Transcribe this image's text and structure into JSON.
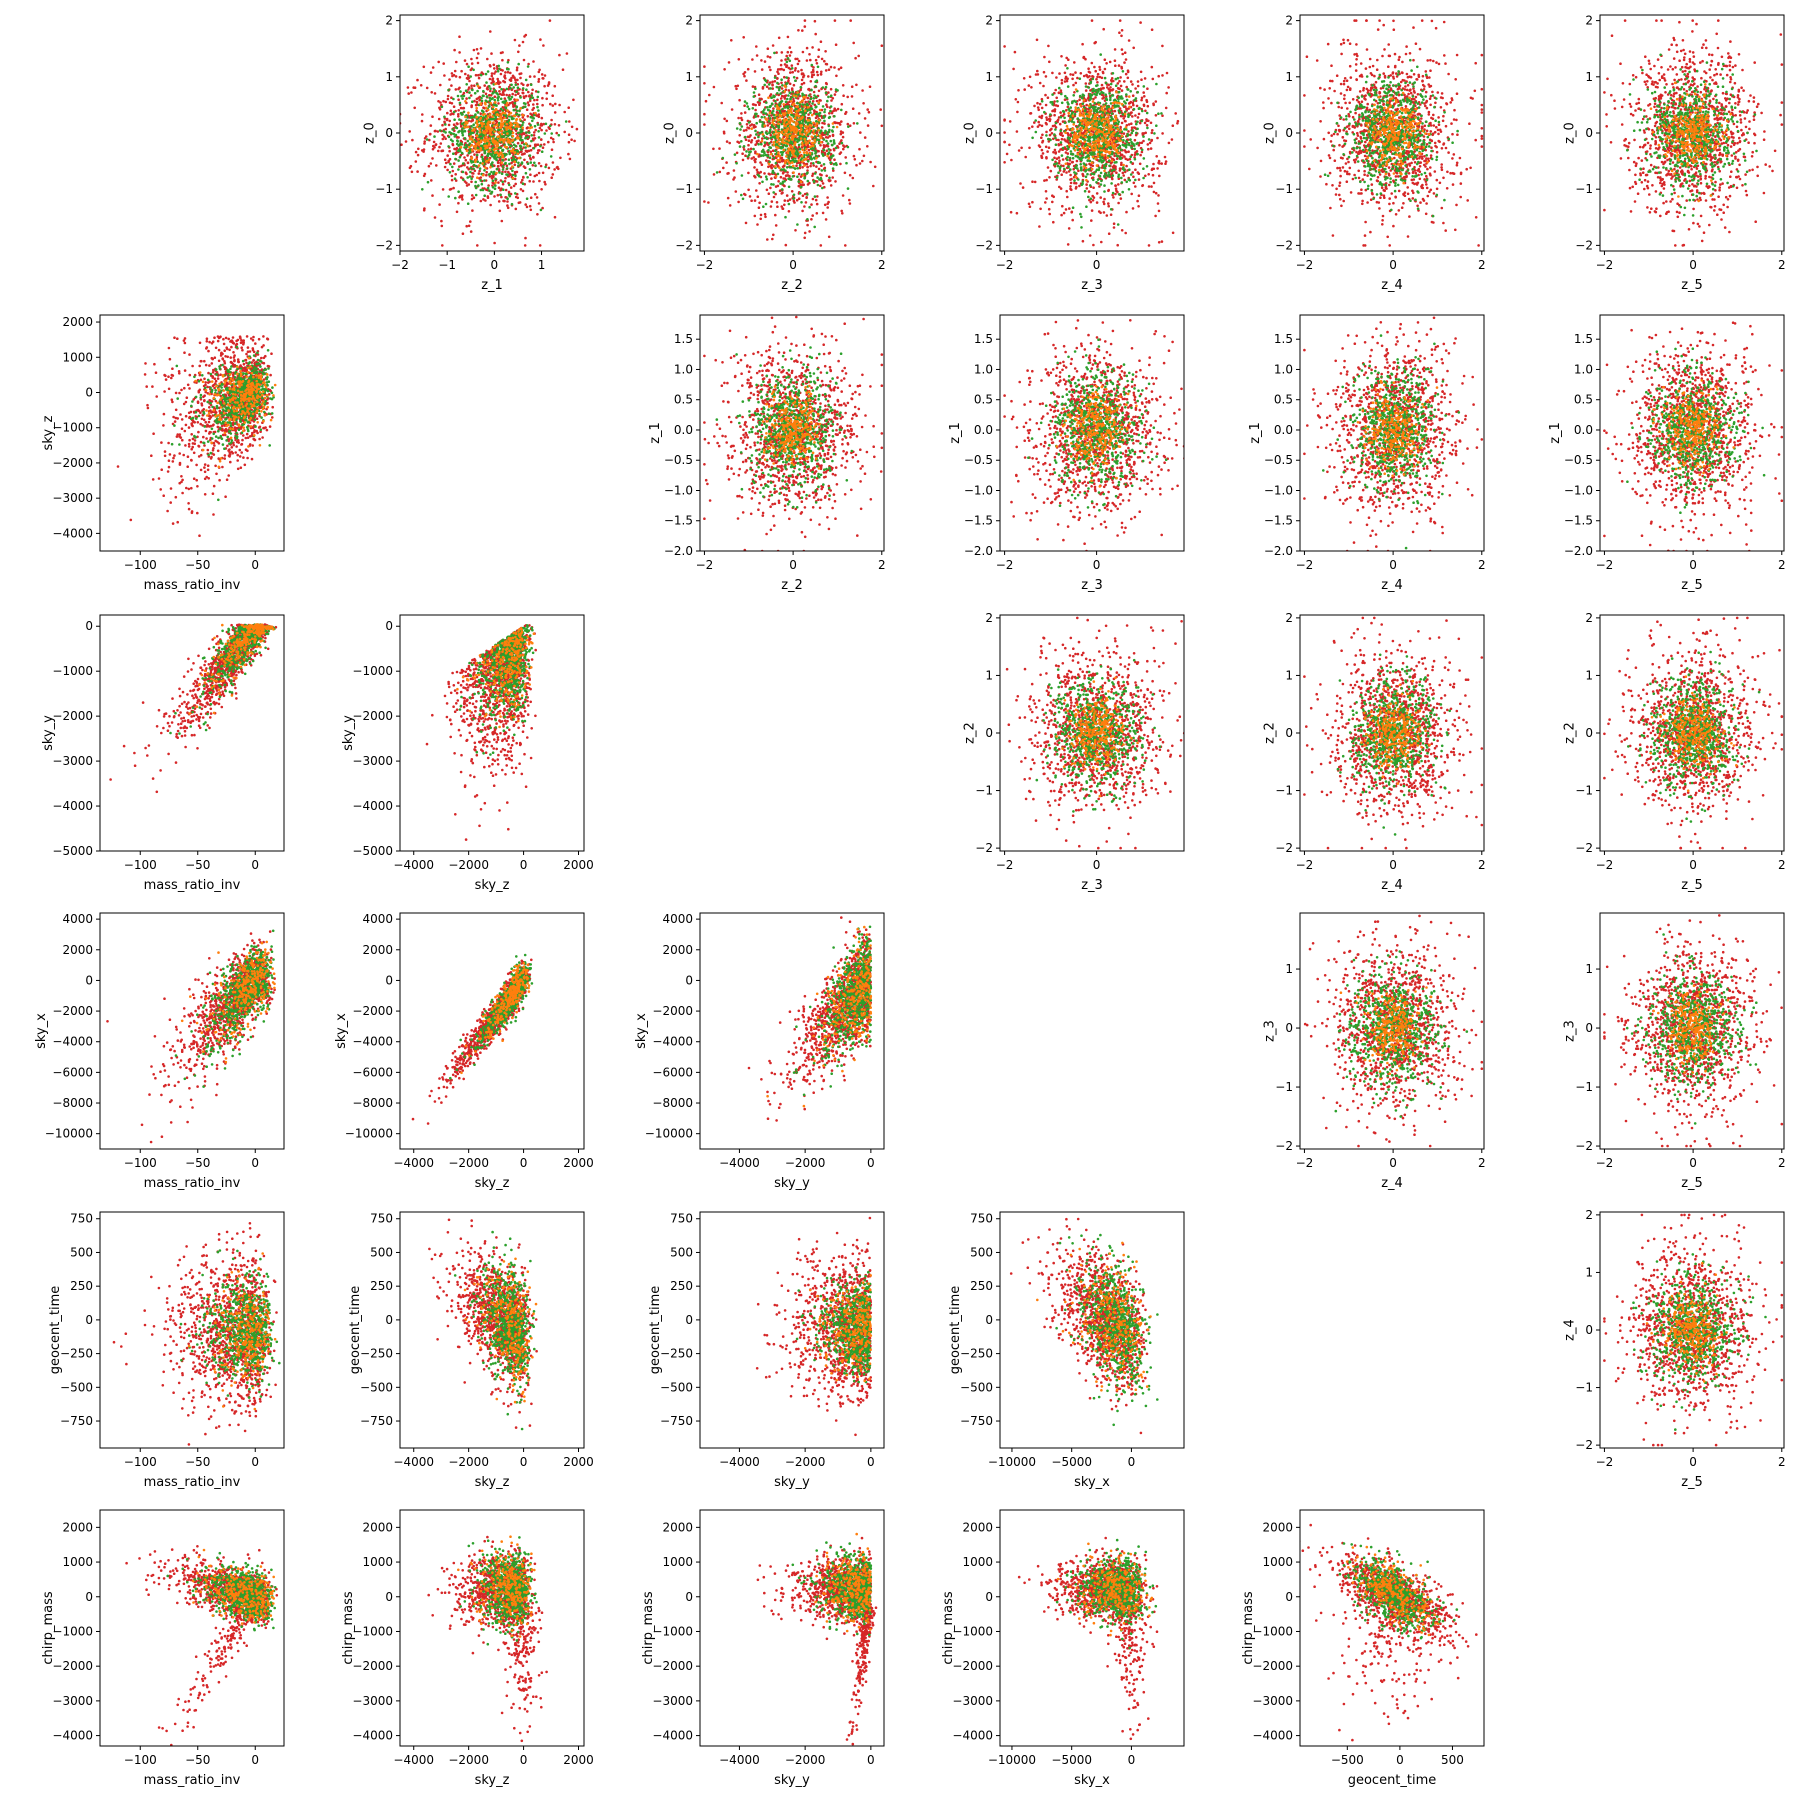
{
  "figure": {
    "description_type": "pairwise scatter matrix"
  },
  "colors": {
    "red": "#d62728",
    "green": "#2ca02c",
    "orange": "#ff7f0e",
    "axes": "#000000",
    "background": "#ffffff"
  },
  "chart_data": [
    {
      "type": "scatter",
      "xlabel": "z_1",
      "ylabel": "z_0",
      "xlim": [
        -2,
        1.9
      ],
      "ylim": [
        -2.1,
        2.1
      ],
      "xticks": [
        -2,
        -1,
        0,
        1
      ],
      "xticklabels": [
        "−2",
        "−1",
        "0",
        "1"
      ],
      "yticks": [
        -2,
        -1,
        0,
        1,
        2
      ],
      "yticklabels": [
        "−2",
        "−1",
        "0",
        "1",
        "2"
      ],
      "gen": "blob"
    },
    {
      "type": "scatter",
      "xlabel": "z_2",
      "ylabel": "z_0",
      "xlim": [
        -2.1,
        2.05
      ],
      "ylim": [
        -2.1,
        2.1
      ],
      "xticks": [
        -2,
        0,
        2
      ],
      "xticklabels": [
        "−2",
        "0",
        "2"
      ],
      "yticks": [
        -2,
        -1,
        0,
        1,
        2
      ],
      "yticklabels": [
        "−2",
        "−1",
        "0",
        "1",
        "2"
      ],
      "gen": "blob"
    },
    {
      "type": "scatter",
      "xlabel": "z_3",
      "ylabel": "z_0",
      "xlim": [
        -2.1,
        1.9
      ],
      "ylim": [
        -2.1,
        2.1
      ],
      "xticks": [
        -2,
        0,
        2
      ],
      "xticklabels": [
        "−2",
        "0",
        "2"
      ],
      "yticks": [
        -2,
        -1,
        0,
        1,
        2
      ],
      "yticklabels": [
        "−2",
        "−1",
        "0",
        "1",
        "2"
      ],
      "gen": "blob"
    },
    {
      "type": "scatter",
      "xlabel": "z_4",
      "ylabel": "z_0",
      "xlim": [
        -2.1,
        2.05
      ],
      "ylim": [
        -2.1,
        2.1
      ],
      "xticks": [
        -2,
        0,
        2
      ],
      "xticklabels": [
        "−2",
        "0",
        "2"
      ],
      "yticks": [
        -2,
        -1,
        0,
        1,
        2
      ],
      "yticklabels": [
        "−2",
        "−1",
        "0",
        "1",
        "2"
      ],
      "gen": "blob"
    },
    {
      "type": "scatter",
      "xlabel": "z_5",
      "ylabel": "z_0",
      "xlim": [
        -2.1,
        2.05
      ],
      "ylim": [
        -2.1,
        2.1
      ],
      "xticks": [
        -2,
        0,
        2
      ],
      "xticklabels": [
        "−2",
        "0",
        "2"
      ],
      "yticks": [
        -2,
        -1,
        0,
        1,
        2
      ],
      "yticklabels": [
        "−2",
        "−1",
        "0",
        "1",
        "2"
      ],
      "gen": "blob"
    },
    {
      "type": "scatter",
      "xlabel": "mass_ratio_inv",
      "ylabel": "sky_z",
      "xlim": [
        -135,
        25
      ],
      "ylim": [
        -4500,
        2200
      ],
      "xticks": [
        -100,
        -50,
        0
      ],
      "xticklabels": [
        "−100",
        "−50",
        "0"
      ],
      "yticks": [
        2000,
        1000,
        0,
        -1000,
        -2000,
        -3000,
        -4000
      ],
      "yticklabels": [
        "2000",
        "1000",
        "0",
        "−1000",
        "−2000",
        "−3000",
        "−4000"
      ],
      "gen": "mq_skyz"
    },
    {
      "type": "scatter",
      "xlabel": "z_2",
      "ylabel": "z_1",
      "xlim": [
        -2.1,
        2.05
      ],
      "ylim": [
        -2.0,
        1.9
      ],
      "xticks": [
        -2,
        0,
        2
      ],
      "xticklabels": [
        "−2",
        "0",
        "2"
      ],
      "yticks": [
        1.5,
        1.0,
        0.5,
        0.0,
        -0.5,
        -1.0,
        -1.5,
        -2.0
      ],
      "yticklabels": [
        "1.5",
        "1.0",
        "0.5",
        "0.0",
        "−0.5",
        "−1.0",
        "−1.5",
        "−2.0"
      ],
      "gen": "blob"
    },
    {
      "type": "scatter",
      "xlabel": "z_3",
      "ylabel": "z_1",
      "xlim": [
        -2.1,
        1.9
      ],
      "ylim": [
        -2.0,
        1.9
      ],
      "xticks": [
        -2,
        0,
        2
      ],
      "xticklabels": [
        "−2",
        "0",
        "2"
      ],
      "yticks": [
        1.5,
        1.0,
        0.5,
        0.0,
        -0.5,
        -1.0,
        -1.5,
        -2.0
      ],
      "yticklabels": [
        "1.5",
        "1.0",
        "0.5",
        "0.0",
        "−0.5",
        "−1.0",
        "−1.5",
        "−2.0"
      ],
      "gen": "blob"
    },
    {
      "type": "scatter",
      "xlabel": "z_4",
      "ylabel": "z_1",
      "xlim": [
        -2.1,
        2.05
      ],
      "ylim": [
        -2.0,
        1.9
      ],
      "xticks": [
        -2,
        0,
        2
      ],
      "xticklabels": [
        "−2",
        "0",
        "2"
      ],
      "yticks": [
        1.5,
        1.0,
        0.5,
        0.0,
        -0.5,
        -1.0,
        -1.5,
        -2.0
      ],
      "yticklabels": [
        "1.5",
        "1.0",
        "0.5",
        "0.0",
        "−0.5",
        "−1.0",
        "−1.5",
        "−2.0"
      ],
      "gen": "blob"
    },
    {
      "type": "scatter",
      "xlabel": "z_5",
      "ylabel": "z_1",
      "xlim": [
        -2.1,
        2.05
      ],
      "ylim": [
        -2.0,
        1.9
      ],
      "xticks": [
        -2,
        0,
        2
      ],
      "xticklabels": [
        "−2",
        "0",
        "2"
      ],
      "yticks": [
        1.5,
        1.0,
        0.5,
        0.0,
        -0.5,
        -1.0,
        -1.5,
        -2.0
      ],
      "yticklabels": [
        "1.5",
        "1.0",
        "0.5",
        "0.0",
        "−0.5",
        "−1.0",
        "−1.5",
        "−2.0"
      ],
      "gen": "blob"
    },
    {
      "type": "scatter",
      "xlabel": "mass_ratio_inv",
      "ylabel": "sky_y",
      "xlim": [
        -135,
        25
      ],
      "ylim": [
        -5000,
        250
      ],
      "xticks": [
        -100,
        -50,
        0
      ],
      "xticklabels": [
        "−100",
        "−50",
        "0"
      ],
      "yticks": [
        0,
        -1000,
        -2000,
        -3000,
        -4000,
        -5000
      ],
      "yticklabels": [
        "0",
        "−1000",
        "−2000",
        "−3000",
        "−4000",
        "−5000"
      ],
      "gen": "mq_skyy"
    },
    {
      "type": "scatter",
      "xlabel": "sky_z",
      "ylabel": "sky_y",
      "xlim": [
        -4500,
        2200
      ],
      "ylim": [
        -5000,
        250
      ],
      "xticks": [
        -4000,
        -2000,
        0,
        2000
      ],
      "xticklabels": [
        "−4000",
        "−2000",
        "0",
        "2000"
      ],
      "yticks": [
        0,
        -1000,
        -2000,
        -3000,
        -4000,
        -5000
      ],
      "yticklabels": [
        "0",
        "−1000",
        "−2000",
        "−3000",
        "−4000",
        "−5000"
      ],
      "gen": "skyz_skyy"
    },
    {
      "type": "scatter",
      "xlabel": "z_3",
      "ylabel": "z_2",
      "xlim": [
        -2.1,
        1.9
      ],
      "ylim": [
        -2.05,
        2.05
      ],
      "xticks": [
        -2,
        0,
        2
      ],
      "xticklabels": [
        "−2",
        "0",
        "2"
      ],
      "yticks": [
        -2,
        -1,
        0,
        1,
        2
      ],
      "yticklabels": [
        "−2",
        "−1",
        "0",
        "1",
        "2"
      ],
      "gen": "blob"
    },
    {
      "type": "scatter",
      "xlabel": "z_4",
      "ylabel": "z_2",
      "xlim": [
        -2.1,
        2.05
      ],
      "ylim": [
        -2.05,
        2.05
      ],
      "xticks": [
        -2,
        0,
        2
      ],
      "xticklabels": [
        "−2",
        "0",
        "2"
      ],
      "yticks": [
        -2,
        -1,
        0,
        1,
        2
      ],
      "yticklabels": [
        "−2",
        "−1",
        "0",
        "1",
        "2"
      ],
      "gen": "blob"
    },
    {
      "type": "scatter",
      "xlabel": "z_5",
      "ylabel": "z_2",
      "xlim": [
        -2.1,
        2.05
      ],
      "ylim": [
        -2.05,
        2.05
      ],
      "xticks": [
        -2,
        0,
        2
      ],
      "xticklabels": [
        "−2",
        "0",
        "2"
      ],
      "yticks": [
        -2,
        -1,
        0,
        1,
        2
      ],
      "yticklabels": [
        "−2",
        "−1",
        "0",
        "1",
        "2"
      ],
      "gen": "blob"
    },
    {
      "type": "scatter",
      "xlabel": "mass_ratio_inv",
      "ylabel": "sky_x",
      "xlim": [
        -135,
        25
      ],
      "ylim": [
        -11000,
        4400
      ],
      "xticks": [
        -100,
        -50,
        0
      ],
      "xticklabels": [
        "−100",
        "−50",
        "0"
      ],
      "yticks": [
        4000,
        2000,
        0,
        -2000,
        -4000,
        -6000,
        -8000,
        -10000
      ],
      "yticklabels": [
        "4000",
        "2000",
        "0",
        "−2000",
        "−4000",
        "−6000",
        "−8000",
        "−10000"
      ],
      "gen": "mq_skyx"
    },
    {
      "type": "scatter",
      "xlabel": "sky_z",
      "ylabel": "sky_x",
      "xlim": [
        -4500,
        2200
      ],
      "ylim": [
        -11000,
        4400
      ],
      "xticks": [
        -4000,
        -2000,
        0,
        2000
      ],
      "xticklabels": [
        "−4000",
        "−2000",
        "0",
        "2000"
      ],
      "yticks": [
        4000,
        2000,
        0,
        -2000,
        -4000,
        -6000,
        -8000,
        -10000
      ],
      "yticklabels": [
        "4000",
        "2000",
        "0",
        "−2000",
        "−4000",
        "−6000",
        "−8000",
        "−10000"
      ],
      "gen": "skyz_skyx"
    },
    {
      "type": "scatter",
      "xlabel": "sky_y",
      "ylabel": "sky_x",
      "xlim": [
        -5200,
        400
      ],
      "ylim": [
        -11000,
        4400
      ],
      "xticks": [
        -4000,
        -2000,
        0
      ],
      "xticklabels": [
        "−4000",
        "−2000",
        "0"
      ],
      "yticks": [
        4000,
        2000,
        0,
        -2000,
        -4000,
        -6000,
        -8000,
        -10000
      ],
      "yticklabels": [
        "4000",
        "2000",
        "0",
        "−2000",
        "−4000",
        "−6000",
        "−8000",
        "−10000"
      ],
      "gen": "skyy_skyx"
    },
    {
      "type": "scatter",
      "xlabel": "z_4",
      "ylabel": "z_3",
      "xlim": [
        -2.1,
        2.05
      ],
      "ylim": [
        -2.05,
        1.95
      ],
      "xticks": [
        -2,
        0,
        2
      ],
      "xticklabels": [
        "−2",
        "0",
        "2"
      ],
      "yticks": [
        1,
        0,
        -1,
        -2
      ],
      "yticklabels": [
        "1",
        "0",
        "−1",
        "−2"
      ],
      "gen": "blob"
    },
    {
      "type": "scatter",
      "xlabel": "z_5",
      "ylabel": "z_3",
      "xlim": [
        -2.1,
        2.05
      ],
      "ylim": [
        -2.05,
        1.95
      ],
      "xticks": [
        -2,
        0,
        2
      ],
      "xticklabels": [
        "−2",
        "0",
        "2"
      ],
      "yticks": [
        1,
        0,
        -1,
        -2
      ],
      "yticklabels": [
        "1",
        "0",
        "−1",
        "−2"
      ],
      "gen": "blob"
    },
    {
      "type": "scatter",
      "xlabel": "mass_ratio_inv",
      "ylabel": "geocent_time",
      "xlim": [
        -135,
        25
      ],
      "ylim": [
        -950,
        800
      ],
      "xticks": [
        -100,
        -50,
        0
      ],
      "xticklabels": [
        "−100",
        "−50",
        "0"
      ],
      "yticks": [
        750,
        500,
        250,
        0,
        -250,
        -500,
        -750
      ],
      "yticklabels": [
        "750",
        "500",
        "250",
        "0",
        "−250",
        "−500",
        "−750"
      ],
      "gen": "mq_gt"
    },
    {
      "type": "scatter",
      "xlabel": "sky_z",
      "ylabel": "geocent_time",
      "xlim": [
        -4500,
        2200
      ],
      "ylim": [
        -950,
        800
      ],
      "xticks": [
        -4000,
        -2000,
        0,
        2000
      ],
      "xticklabels": [
        "−4000",
        "−2000",
        "0",
        "2000"
      ],
      "yticks": [
        750,
        500,
        250,
        0,
        -250,
        -500,
        -750
      ],
      "yticklabels": [
        "750",
        "500",
        "250",
        "0",
        "−250",
        "−500",
        "−750"
      ],
      "gen": "skyz_gt"
    },
    {
      "type": "scatter",
      "xlabel": "sky_y",
      "ylabel": "geocent_time",
      "xlim": [
        -5200,
        400
      ],
      "ylim": [
        -950,
        800
      ],
      "xticks": [
        -4000,
        -2000,
        0
      ],
      "xticklabels": [
        "−4000",
        "−2000",
        "0"
      ],
      "yticks": [
        750,
        500,
        250,
        0,
        -250,
        -500,
        -750
      ],
      "yticklabels": [
        "750",
        "500",
        "250",
        "0",
        "−250",
        "−500",
        "−750"
      ],
      "gen": "skyy_gt"
    },
    {
      "type": "scatter",
      "xlabel": "sky_x",
      "ylabel": "geocent_time",
      "xlim": [
        -11000,
        4400
      ],
      "ylim": [
        -950,
        800
      ],
      "xticks": [
        -10000,
        -5000,
        0
      ],
      "xticklabels": [
        "−10000",
        "−5000",
        "0"
      ],
      "yticks": [
        750,
        500,
        250,
        0,
        -250,
        -500,
        -750
      ],
      "yticklabels": [
        "750",
        "500",
        "250",
        "0",
        "−250",
        "−500",
        "−750"
      ],
      "gen": "skyx_gt"
    },
    {
      "type": "scatter",
      "xlabel": "z_5",
      "ylabel": "z_4",
      "xlim": [
        -2.1,
        2.05
      ],
      "ylim": [
        -2.05,
        2.05
      ],
      "xticks": [
        -2,
        0,
        2
      ],
      "xticklabels": [
        "−2",
        "0",
        "2"
      ],
      "yticks": [
        -2,
        -1,
        0,
        1,
        2
      ],
      "yticklabels": [
        "−2",
        "−1",
        "0",
        "1",
        "2"
      ],
      "gen": "blob"
    },
    {
      "type": "scatter",
      "xlabel": "mass_ratio_inv",
      "ylabel": "chirp_mass",
      "xlim": [
        -135,
        25
      ],
      "ylim": [
        -4300,
        2500
      ],
      "xticks": [
        -100,
        -50,
        0
      ],
      "xticklabels": [
        "−100",
        "−50",
        "0"
      ],
      "yticks": [
        2000,
        1000,
        0,
        -1000,
        -2000,
        -3000,
        -4000
      ],
      "yticklabels": [
        "2000",
        "1000",
        "0",
        "−1000",
        "−2000",
        "−3000",
        "−4000"
      ],
      "gen": "mq_cm"
    },
    {
      "type": "scatter",
      "xlabel": "sky_z",
      "ylabel": "chirp_mass",
      "xlim": [
        -4500,
        2200
      ],
      "ylim": [
        -4300,
        2500
      ],
      "xticks": [
        -4000,
        -2000,
        0,
        2000
      ],
      "xticklabels": [
        "−4000",
        "−2000",
        "0",
        "2000"
      ],
      "yticks": [
        2000,
        1000,
        0,
        -1000,
        -2000,
        -3000,
        -4000
      ],
      "yticklabels": [
        "2000",
        "1000",
        "0",
        "−1000",
        "−2000",
        "−3000",
        "−4000"
      ],
      "gen": "skyz_cm"
    },
    {
      "type": "scatter",
      "xlabel": "sky_y",
      "ylabel": "chirp_mass",
      "xlim": [
        -5200,
        400
      ],
      "ylim": [
        -4300,
        2500
      ],
      "xticks": [
        -4000,
        -2000,
        0
      ],
      "xticklabels": [
        "−4000",
        "−2000",
        "0"
      ],
      "yticks": [
        2000,
        1000,
        0,
        -1000,
        -2000,
        -3000,
        -4000
      ],
      "yticklabels": [
        "2000",
        "1000",
        "0",
        "−1000",
        "−2000",
        "−3000",
        "−4000"
      ],
      "gen": "skyy_cm"
    },
    {
      "type": "scatter",
      "xlabel": "sky_x",
      "ylabel": "chirp_mass",
      "xlim": [
        -11000,
        4400
      ],
      "ylim": [
        -4300,
        2500
      ],
      "xticks": [
        -10000,
        -5000,
        0
      ],
      "xticklabels": [
        "−10000",
        "−5000",
        "0"
      ],
      "yticks": [
        2000,
        1000,
        0,
        -1000,
        -2000,
        -3000,
        -4000
      ],
      "yticklabels": [
        "2000",
        "1000",
        "0",
        "−1000",
        "−2000",
        "−3000",
        "−4000"
      ],
      "gen": "skyx_cm"
    },
    {
      "type": "scatter",
      "xlabel": "geocent_time",
      "ylabel": "chirp_mass",
      "xlim": [
        -950,
        800
      ],
      "ylim": [
        -4300,
        2500
      ],
      "xticks": [
        -500,
        0,
        500
      ],
      "xticklabels": [
        "−500",
        "0",
        "500"
      ],
      "yticks": [
        2000,
        1000,
        0,
        -1000,
        -2000,
        -3000,
        -4000
      ],
      "yticklabels": [
        "2000",
        "1000",
        "0",
        "−1000",
        "−2000",
        "−3000",
        "−4000"
      ],
      "gen": "gt_cm"
    }
  ]
}
